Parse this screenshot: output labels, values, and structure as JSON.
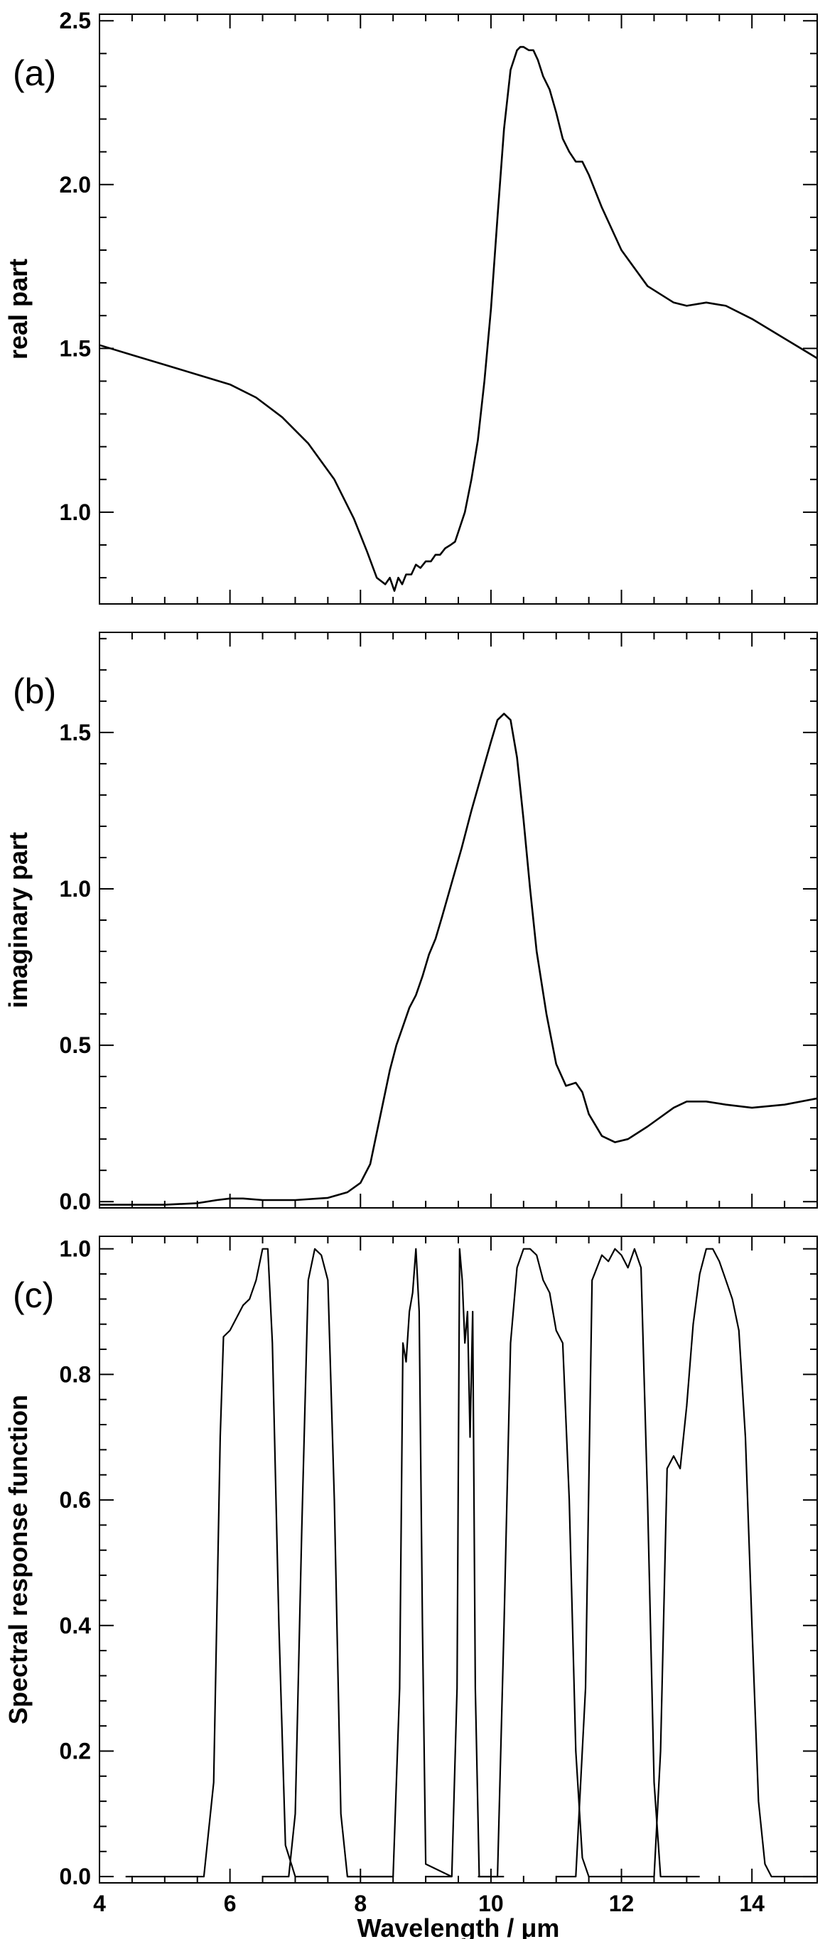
{
  "chart_data": [
    {
      "type": "line",
      "panel_label": "(a)",
      "ylabel": "real part",
      "xlabel": "",
      "xlim": [
        4,
        15
      ],
      "ylim": [
        0.72,
        2.52
      ],
      "xticks": [
        4,
        6,
        8,
        10,
        12,
        14
      ],
      "yticks": [
        1.0,
        1.5,
        2.0,
        2.5
      ],
      "ytick_labels": [
        "1.0",
        "1.5",
        "2.0",
        "2.5"
      ],
      "grid": false,
      "series": [
        {
          "x": [
            4.0,
            4.5,
            5.0,
            5.5,
            6.0,
            6.4,
            6.8,
            7.2,
            7.6,
            7.9,
            8.1,
            8.25,
            8.38,
            8.45,
            8.52,
            8.58,
            8.64,
            8.7,
            8.78,
            8.85,
            8.92,
            9.0,
            9.08,
            9.15,
            9.22,
            9.3,
            9.38,
            9.45,
            9.5,
            9.6,
            9.7,
            9.8,
            9.9,
            10.0,
            10.1,
            10.2,
            10.3,
            10.4,
            10.45,
            10.5,
            10.58,
            10.65,
            10.72,
            10.8,
            10.9,
            11.0,
            11.1,
            11.2,
            11.3,
            11.4,
            11.5,
            11.7,
            12.0,
            12.4,
            12.8,
            13.0,
            13.3,
            13.6,
            14.0,
            14.5,
            15.0
          ],
          "y": [
            1.51,
            1.48,
            1.45,
            1.42,
            1.39,
            1.35,
            1.29,
            1.21,
            1.1,
            0.98,
            0.88,
            0.8,
            0.78,
            0.8,
            0.76,
            0.8,
            0.78,
            0.81,
            0.81,
            0.84,
            0.83,
            0.85,
            0.85,
            0.87,
            0.87,
            0.89,
            0.9,
            0.91,
            0.94,
            1.0,
            1.1,
            1.22,
            1.4,
            1.62,
            1.9,
            2.17,
            2.35,
            2.41,
            2.42,
            2.42,
            2.41,
            2.41,
            2.38,
            2.33,
            2.29,
            2.22,
            2.14,
            2.1,
            2.07,
            2.07,
            2.03,
            1.93,
            1.8,
            1.69,
            1.64,
            1.63,
            1.64,
            1.63,
            1.59,
            1.53,
            1.47
          ]
        }
      ]
    },
    {
      "type": "line",
      "panel_label": "(b)",
      "ylabel": "imaginary part",
      "xlabel": "",
      "xlim": [
        4,
        15
      ],
      "ylim": [
        -0.02,
        1.82
      ],
      "xticks": [
        4,
        6,
        8,
        10,
        12,
        14
      ],
      "yticks": [
        0.0,
        0.5,
        1.0,
        1.5
      ],
      "ytick_labels": [
        "0.0",
        "0.5",
        "1.0",
        "1.5"
      ],
      "grid": false,
      "series": [
        {
          "x": [
            4.0,
            4.5,
            5.0,
            5.5,
            5.8,
            6.0,
            6.2,
            6.5,
            7.0,
            7.5,
            7.8,
            8.0,
            8.15,
            8.25,
            8.35,
            8.45,
            8.55,
            8.65,
            8.75,
            8.85,
            8.95,
            9.05,
            9.15,
            9.25,
            9.4,
            9.55,
            9.7,
            9.85,
            10.0,
            10.1,
            10.2,
            10.3,
            10.4,
            10.5,
            10.6,
            10.7,
            10.85,
            11.0,
            11.15,
            11.3,
            11.4,
            11.5,
            11.7,
            11.9,
            12.1,
            12.4,
            12.8,
            13.0,
            13.3,
            13.6,
            14.0,
            14.5,
            15.0
          ],
          "y": [
            -0.01,
            -0.01,
            -0.01,
            -0.005,
            0.005,
            0.01,
            0.01,
            0.005,
            0.005,
            0.012,
            0.03,
            0.06,
            0.12,
            0.22,
            0.32,
            0.42,
            0.5,
            0.56,
            0.62,
            0.66,
            0.72,
            0.79,
            0.84,
            0.91,
            1.02,
            1.13,
            1.25,
            1.36,
            1.47,
            1.54,
            1.56,
            1.54,
            1.42,
            1.22,
            1.0,
            0.8,
            0.6,
            0.44,
            0.37,
            0.38,
            0.35,
            0.28,
            0.21,
            0.19,
            0.2,
            0.24,
            0.3,
            0.32,
            0.32,
            0.31,
            0.3,
            0.31,
            0.33
          ]
        }
      ]
    },
    {
      "type": "line",
      "panel_label": "(c)",
      "ylabel": "Spectral response function",
      "xlabel": "Wavelength / μm",
      "xlim": [
        4,
        15
      ],
      "ylim": [
        -0.01,
        1.02
      ],
      "xticks": [
        4,
        6,
        8,
        10,
        12,
        14
      ],
      "xtick_labels": [
        "4",
        "6",
        "8",
        "10",
        "12",
        "14"
      ],
      "yticks": [
        0.0,
        0.2,
        0.4,
        0.6,
        0.8,
        1.0
      ],
      "ytick_labels": [
        "0.0",
        "0.2",
        "0.4",
        "0.6",
        "0.8",
        "1.0"
      ],
      "grid": false,
      "series": [
        {
          "x": [
            4.4,
            5.6,
            5.75,
            5.85,
            5.9,
            6.0,
            6.1,
            6.2,
            6.3,
            6.4,
            6.5,
            6.58,
            6.65,
            6.75,
            6.85,
            7.0,
            7.5
          ],
          "y": [
            0.0,
            0.0,
            0.15,
            0.7,
            0.86,
            0.87,
            0.89,
            0.91,
            0.92,
            0.95,
            1.0,
            1.0,
            0.85,
            0.4,
            0.05,
            0.0,
            0.0
          ]
        },
        {
          "x": [
            6.5,
            6.9,
            7.0,
            7.1,
            7.2,
            7.3,
            7.4,
            7.5,
            7.6,
            7.7,
            7.8,
            8.5
          ],
          "y": [
            0.0,
            0.0,
            0.1,
            0.55,
            0.95,
            1.0,
            0.99,
            0.95,
            0.6,
            0.1,
            0.0,
            0.0
          ]
        },
        {
          "x": [
            7.8,
            8.5,
            8.6,
            8.65,
            8.7,
            8.75,
            8.8,
            8.85,
            8.9,
            8.95,
            9.0,
            9.4
          ],
          "y": [
            0.0,
            0.0,
            0.3,
            0.85,
            0.82,
            0.9,
            0.93,
            1.0,
            0.9,
            0.4,
            0.02,
            0.0
          ]
        },
        {
          "x": [
            9.0,
            9.4,
            9.48,
            9.52,
            9.56,
            9.6,
            9.64,
            9.68,
            9.72,
            9.76,
            9.82,
            10.2
          ],
          "y": [
            0.0,
            0.0,
            0.3,
            1.0,
            0.95,
            0.85,
            0.9,
            0.7,
            0.9,
            0.3,
            0.0,
            0.0
          ]
        },
        {
          "x": [
            9.8,
            10.1,
            10.2,
            10.3,
            10.4,
            10.5,
            10.6,
            10.7,
            10.8,
            10.9,
            11.0,
            11.1,
            11.2,
            11.3,
            11.4,
            11.5,
            12.0
          ],
          "y": [
            0.0,
            0.0,
            0.4,
            0.85,
            0.97,
            1.0,
            1.0,
            0.99,
            0.95,
            0.93,
            0.87,
            0.85,
            0.6,
            0.2,
            0.03,
            0.0,
            0.0
          ]
        },
        {
          "x": [
            11.0,
            11.3,
            11.45,
            11.55,
            11.7,
            11.8,
            11.9,
            12.0,
            12.1,
            12.2,
            12.3,
            12.4,
            12.5,
            12.6,
            13.2
          ],
          "y": [
            0.0,
            0.0,
            0.3,
            0.95,
            0.99,
            0.98,
            1.0,
            0.99,
            0.97,
            1.0,
            0.97,
            0.6,
            0.15,
            0.0,
            0.0
          ]
        },
        {
          "x": [
            12.0,
            12.5,
            12.6,
            12.7,
            12.8,
            12.9,
            13.0,
            13.1,
            13.2,
            13.3,
            13.4,
            13.5,
            13.6,
            13.7,
            13.8,
            13.9,
            14.0,
            14.1,
            14.2,
            14.3,
            15.0
          ],
          "y": [
            0.0,
            0.0,
            0.2,
            0.65,
            0.67,
            0.65,
            0.75,
            0.88,
            0.96,
            1.0,
            1.0,
            0.98,
            0.95,
            0.92,
            0.87,
            0.7,
            0.4,
            0.12,
            0.02,
            0.0,
            0.0
          ]
        }
      ]
    }
  ]
}
